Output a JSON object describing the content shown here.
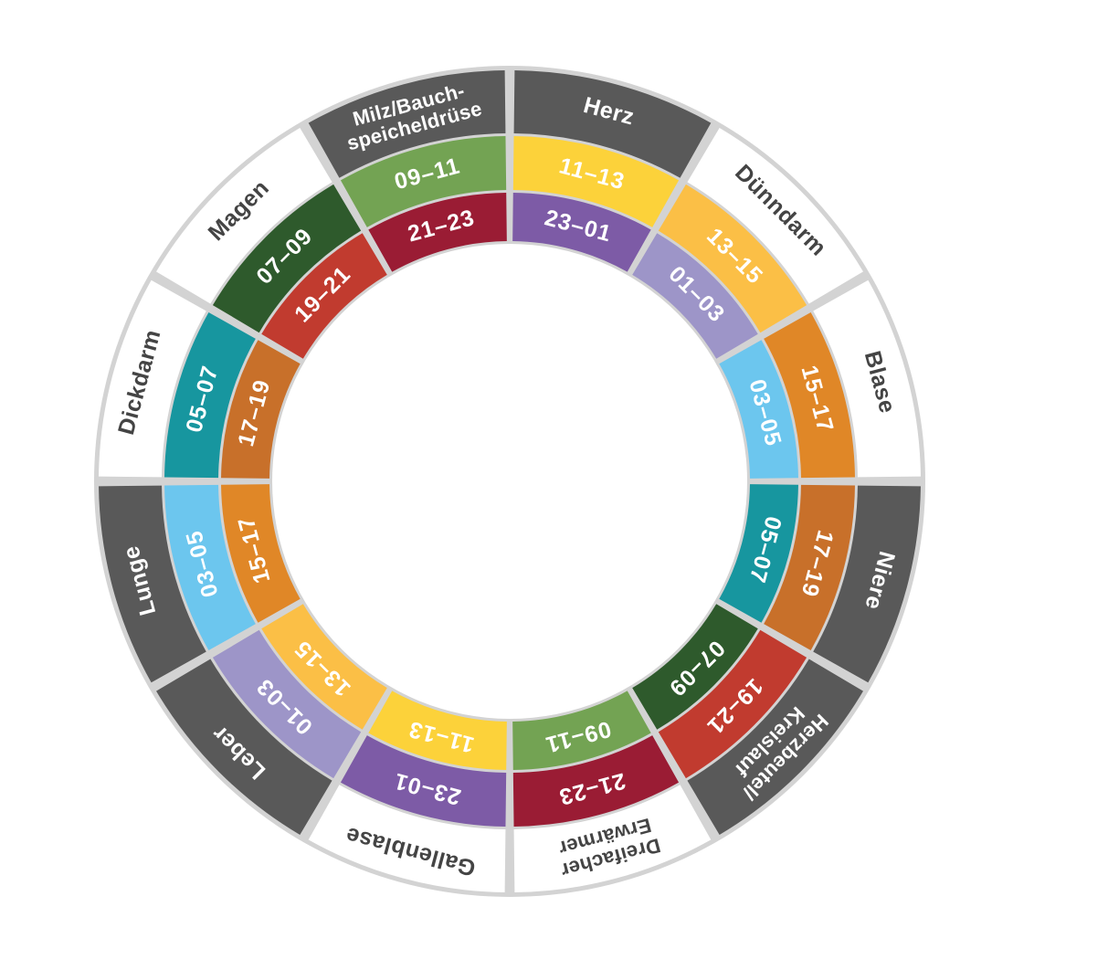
{
  "colors": {
    "divider": "#d3d3d3",
    "dark_band": "#595959",
    "light_band": "#ffffff",
    "dark_text": "#ffffff",
    "light_text": "#444444"
  },
  "segments": [
    {
      "organ": [
        "Herz"
      ],
      "style": "dark",
      "outer_time": "11–13",
      "outer_color": "#fcd23a",
      "inner_time": "23–01",
      "inner_color": "#7d5ba6"
    },
    {
      "organ": [
        "Dünndarm"
      ],
      "style": "light",
      "outer_time": "13–15",
      "outer_color": "#fbbf46",
      "inner_time": "01–03",
      "inner_color": "#9d95c8"
    },
    {
      "organ": [
        "Blase"
      ],
      "style": "light",
      "outer_time": "15–17",
      "outer_color": "#e08727",
      "inner_time": "03–05",
      "inner_color": "#6cc6ee"
    },
    {
      "organ": [
        "Niere"
      ],
      "style": "dark",
      "outer_time": "17–19",
      "outer_color": "#c8702a",
      "inner_time": "05–07",
      "inner_color": "#17969f"
    },
    {
      "organ": [
        "Herzbeutel/",
        "Kreislauf"
      ],
      "style": "dark",
      "outer_time": "19–21",
      "outer_color": "#c13b2f",
      "inner_time": "07–09",
      "inner_color": "#2e5a2c"
    },
    {
      "organ": [
        "Dreifacher",
        "Erwärmer"
      ],
      "style": "light",
      "outer_time": "21–23",
      "outer_color": "#9a1c34",
      "inner_time": "09–11",
      "inner_color": "#73a353"
    },
    {
      "organ": [
        "Gallenblase"
      ],
      "style": "light",
      "outer_time": "23–01",
      "outer_color": "#7d5ba6",
      "inner_time": "11–13",
      "inner_color": "#fcd23a"
    },
    {
      "organ": [
        "Leber"
      ],
      "style": "dark",
      "outer_time": "01–03",
      "outer_color": "#9d95c8",
      "inner_time": "13–15",
      "inner_color": "#fbbf46"
    },
    {
      "organ": [
        "Lunge"
      ],
      "style": "dark",
      "outer_time": "03–05",
      "outer_color": "#6cc6ee",
      "inner_time": "15–17",
      "inner_color": "#e08727"
    },
    {
      "organ": [
        "Dickdarm"
      ],
      "style": "light",
      "outer_time": "05–07",
      "outer_color": "#17969f",
      "inner_time": "17–19",
      "inner_color": "#c8702a"
    },
    {
      "organ": [
        "Magen"
      ],
      "style": "light",
      "outer_time": "07–09",
      "outer_color": "#2e5a2c",
      "inner_time": "19–21",
      "inner_color": "#c13b2f"
    },
    {
      "organ": [
        "Milz/Bauch-",
        "speicheldrüse"
      ],
      "style": "dark",
      "outer_time": "09–11",
      "outer_color": "#73a353",
      "inner_time": "21–23",
      "inner_color": "#9a1c34"
    }
  ]
}
